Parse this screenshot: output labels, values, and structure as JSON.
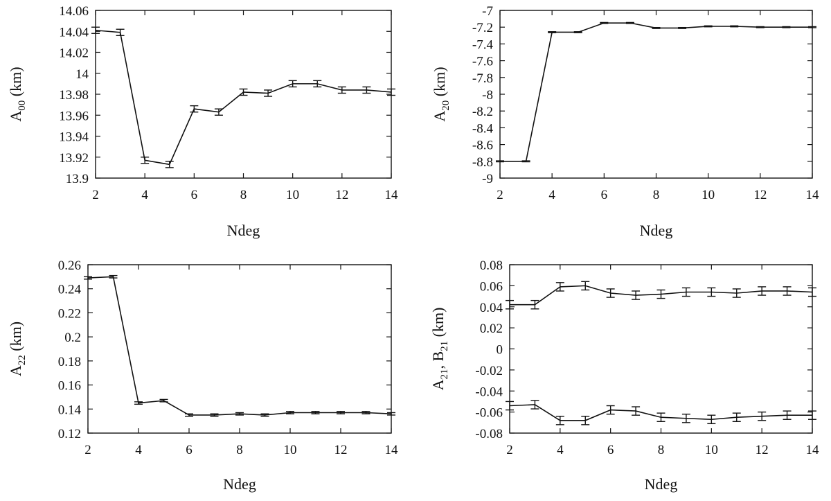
{
  "chart_data": [
    {
      "type": "line",
      "xlabel": "Ndeg",
      "ylabel_main": "A",
      "ylabel_sub": "00",
      "ylabel_unit": " (km)",
      "xlim": [
        2,
        14
      ],
      "ylim": [
        13.9,
        14.06
      ],
      "xticks": [
        2,
        4,
        6,
        8,
        10,
        12,
        14
      ],
      "yticks": [
        13.9,
        13.92,
        13.94,
        13.96,
        13.98,
        14,
        14.02,
        14.04,
        14.06
      ],
      "ytick_labels": [
        "13.9",
        "13.92",
        "13.94",
        "13.96",
        "13.98",
        "14",
        "14.02",
        "14.04",
        "14.06"
      ],
      "series": [
        {
          "name": "A00",
          "x": [
            2,
            3,
            4,
            5,
            6,
            7,
            8,
            9,
            10,
            11,
            12,
            13,
            14
          ],
          "values": [
            14.041,
            14.039,
            13.917,
            13.913,
            13.966,
            13.963,
            13.982,
            13.981,
            13.99,
            13.99,
            13.984,
            13.984,
            13.982
          ],
          "errors": [
            0.003,
            0.003,
            0.003,
            0.003,
            0.003,
            0.003,
            0.003,
            0.003,
            0.003,
            0.003,
            0.003,
            0.003,
            0.003
          ]
        }
      ]
    },
    {
      "type": "line",
      "xlabel": "Ndeg",
      "ylabel_main": "A",
      "ylabel_sub": "20",
      "ylabel_unit": "  (km)",
      "xlim": [
        2,
        14
      ],
      "ylim": [
        -9,
        -7
      ],
      "xticks": [
        2,
        4,
        6,
        8,
        10,
        12,
        14
      ],
      "yticks": [
        -9,
        -8.8,
        -8.6,
        -8.4,
        -8.2,
        -8,
        -7.8,
        -7.6,
        -7.4,
        -7.2,
        -7
      ],
      "ytick_labels": [
        "-9",
        "-8.8",
        "-8.6",
        "-8.4",
        "-8.2",
        "-8",
        "-7.8",
        "-7.6",
        "-7.4",
        "-7.2",
        "-7"
      ],
      "series": [
        {
          "name": "A20",
          "x": [
            2,
            3,
            4,
            5,
            6,
            7,
            8,
            9,
            10,
            11,
            12,
            13,
            14
          ],
          "values": [
            -8.8,
            -8.8,
            -7.26,
            -7.26,
            -7.15,
            -7.15,
            -7.21,
            -7.21,
            -7.19,
            -7.19,
            -7.2,
            -7.2,
            -7.2
          ],
          "errors": [
            0.006,
            0.006,
            0.006,
            0.006,
            0.006,
            0.006,
            0.006,
            0.006,
            0.006,
            0.006,
            0.006,
            0.006,
            0.006
          ]
        }
      ]
    },
    {
      "type": "line",
      "xlabel": "Ndeg",
      "ylabel_main": "A",
      "ylabel_sub": "22",
      "ylabel_unit": "  (km)",
      "xlim": [
        2,
        14
      ],
      "ylim": [
        0.12,
        0.26
      ],
      "xticks": [
        2,
        4,
        6,
        8,
        10,
        12,
        14
      ],
      "yticks": [
        0.12,
        0.14,
        0.16,
        0.18,
        0.2,
        0.22,
        0.24,
        0.26
      ],
      "ytick_labels": [
        "0.12",
        "0.14",
        "0.16",
        "0.18",
        "0.2",
        "0.22",
        "0.24",
        "0.26"
      ],
      "series": [
        {
          "name": "A22",
          "x": [
            2,
            3,
            4,
            5,
            6,
            7,
            8,
            9,
            10,
            11,
            12,
            13,
            14
          ],
          "values": [
            0.249,
            0.25,
            0.145,
            0.147,
            0.135,
            0.135,
            0.136,
            0.135,
            0.137,
            0.137,
            0.137,
            0.137,
            0.136
          ],
          "errors": [
            0.001,
            0.001,
            0.001,
            0.001,
            0.001,
            0.001,
            0.001,
            0.001,
            0.001,
            0.001,
            0.001,
            0.001,
            0.001
          ]
        }
      ]
    },
    {
      "type": "line",
      "xlabel": "Ndeg",
      "ylabel_main": "A",
      "ylabel_sub": "21",
      "ylabel_mid": ", B",
      "ylabel_sub2": "21",
      "ylabel_unit": "  (km)",
      "xlim": [
        2,
        14
      ],
      "ylim": [
        -0.08,
        0.08
      ],
      "xticks": [
        2,
        4,
        6,
        8,
        10,
        12,
        14
      ],
      "yticks": [
        -0.08,
        -0.06,
        -0.04,
        -0.02,
        0,
        0.02,
        0.04,
        0.06,
        0.08
      ],
      "ytick_labels": [
        "-0.08",
        "-0.06",
        "-0.04",
        "-0.02",
        "0",
        "0.02",
        "0.04",
        "0.06",
        "0.08"
      ],
      "series": [
        {
          "name": "A21",
          "x": [
            2,
            3,
            4,
            5,
            6,
            7,
            8,
            9,
            10,
            11,
            12,
            13,
            14
          ],
          "values": [
            0.042,
            0.042,
            0.059,
            0.06,
            0.053,
            0.051,
            0.052,
            0.054,
            0.054,
            0.053,
            0.055,
            0.055,
            0.054
          ],
          "errors": [
            0.004,
            0.004,
            0.004,
            0.004,
            0.004,
            0.004,
            0.004,
            0.004,
            0.004,
            0.004,
            0.004,
            0.004,
            0.004
          ]
        },
        {
          "name": "B21",
          "x": [
            2,
            3,
            4,
            5,
            6,
            7,
            8,
            9,
            10,
            11,
            12,
            13,
            14
          ],
          "values": [
            -0.054,
            -0.053,
            -0.068,
            -0.068,
            -0.058,
            -0.059,
            -0.065,
            -0.066,
            -0.067,
            -0.065,
            -0.064,
            -0.063,
            -0.063
          ],
          "errors": [
            0.004,
            0.004,
            0.004,
            0.004,
            0.004,
            0.004,
            0.004,
            0.004,
            0.004,
            0.004,
            0.004,
            0.004,
            0.004
          ]
        }
      ]
    }
  ]
}
